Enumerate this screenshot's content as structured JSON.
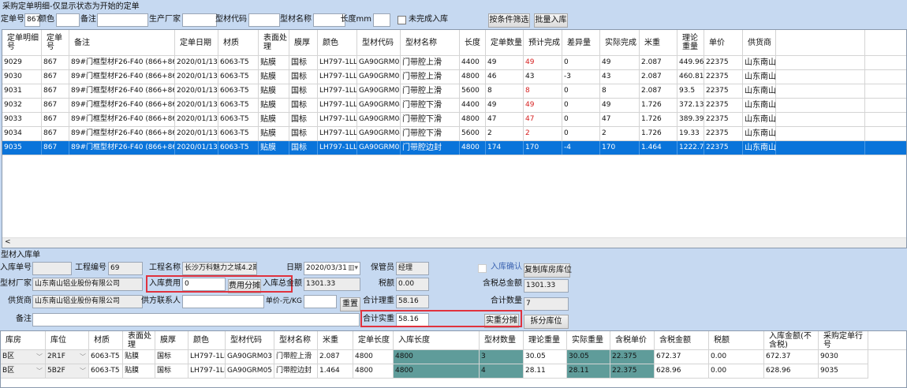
{
  "title": "采购定单明细-仅显示状态为开始的定单",
  "filters": {
    "order_no_label": "定单号",
    "order_no": "867",
    "color_label": "颜色",
    "color": "",
    "remark_label": "备注",
    "remark": "",
    "maker_label": "生产厂家",
    "maker": "",
    "code_label": "型材代码",
    "code": "",
    "name_label": "型材名称",
    "name": "",
    "length_label": "长度mm",
    "length": "",
    "incomplete_label": "未完成入库",
    "filter_btn": "按条件筛选",
    "batch_btn": "批量入库"
  },
  "orders": {
    "headers": [
      "定单明细号",
      "定单号",
      "备注",
      "定单日期",
      "材质",
      "表面处理",
      "膜厚",
      "颜色",
      "型材代码",
      "型材名称",
      "长度",
      "定单数量",
      "预计完成",
      "差异量",
      "实际完成",
      "米重",
      "理论重量",
      "单价",
      "供货商",
      ""
    ],
    "rows": [
      [
        "9029",
        "867",
        "89#门框型材F26-F40 (866+867)",
        "2020/01/13",
        "6063-T5",
        "贴膜",
        "国标",
        "LH797-1LL0",
        "GA90GRM03",
        "门带腔上滑",
        "4400",
        "49",
        "49",
        "0",
        "49",
        "2.087",
        "449.96",
        "22375",
        "山东南山铝业股份有限公司",
        ""
      ],
      [
        "9030",
        "867",
        "89#门框型材F26-F40 (866+867)",
        "2020/01/13",
        "6063-T5",
        "贴膜",
        "国标",
        "LH797-1LL0",
        "GA90GRM03",
        "门带腔上滑",
        "4800",
        "46",
        "43",
        "-3",
        "43",
        "2.087",
        "460.81",
        "22375",
        "山东南山铝业股份有限公司",
        ""
      ],
      [
        "9031",
        "867",
        "89#门框型材F26-F40 (866+867)",
        "2020/01/13",
        "6063-T5",
        "贴膜",
        "国标",
        "LH797-1LL0",
        "GA90GRM03",
        "门带腔上滑",
        "5600",
        "8",
        "8",
        "0",
        "8",
        "2.087",
        "93.5",
        "22375",
        "山东南山铝业股份有限公司",
        ""
      ],
      [
        "9032",
        "867",
        "89#门框型材F26-F40 (866+867)",
        "2020/01/13",
        "6063-T5",
        "贴膜",
        "国标",
        "LH797-1LL0",
        "GA90GRM04",
        "门带腔下滑",
        "4400",
        "49",
        "49",
        "0",
        "49",
        "1.726",
        "372.13",
        "22375",
        "山东南山铝业股份有限公司",
        ""
      ],
      [
        "9033",
        "867",
        "89#门框型材F26-F40 (866+867)",
        "2020/01/13",
        "6063-T5",
        "贴膜",
        "国标",
        "LH797-1LL0",
        "GA90GRM04",
        "门带腔下滑",
        "4800",
        "47",
        "47",
        "0",
        "47",
        "1.726",
        "389.39",
        "22375",
        "山东南山铝业股份有限公司",
        ""
      ],
      [
        "9034",
        "867",
        "89#门框型材F26-F40 (866+867)",
        "2020/01/13",
        "6063-T5",
        "贴膜",
        "国标",
        "LH797-1LL0",
        "GA90GRM04",
        "门带腔下滑",
        "5600",
        "2",
        "2",
        "0",
        "2",
        "1.726",
        "19.33",
        "22375",
        "山东南山铝业股份有限公司",
        ""
      ],
      [
        "9035",
        "867",
        "89#门框型材F26-F40 (866+867)",
        "2020/01/13",
        "6063-T5",
        "贴膜",
        "国标",
        "LH797-1LL0",
        "GA90GRM05",
        "门带腔边封",
        "4800",
        "174",
        "170",
        "-4",
        "170",
        "1.464",
        "1222.73",
        "22375",
        "山东南山铝业股份有限公司",
        ""
      ]
    ],
    "selected_row": 6,
    "red_rows": [
      0,
      2,
      3,
      4,
      5
    ]
  },
  "receipt": {
    "section_title": "型材入库单",
    "receipt_no_label": "入库单号",
    "receipt_no": "",
    "project_no_label": "工程编号",
    "project_no": "69",
    "project_name_label": "工程名称",
    "project_name": "长沙万科魅力之城4.2期",
    "date_label": "日期",
    "date": "2020/03/31",
    "keeper_label": "保管员",
    "keeper": "经理",
    "confirm_label": "入库确认",
    "copy_btn": "复制库房库位",
    "maker_label": "型材厂家",
    "maker": "山东南山铝业股份有限公司",
    "fee_label": "入库费用",
    "fee": "0",
    "fee_btn": "费用分摊",
    "total_label": "入库总金额",
    "total": "1301.33",
    "tax_label": "税额",
    "tax": "0.00",
    "tax_total_label": "含税总金额",
    "tax_total": "1301.33",
    "supplier_label": "供货商",
    "supplier": "山东南山铝业股份有限公司",
    "contact_label": "供方联系人",
    "contact": "",
    "unit_price_label": "单价-元/KG",
    "unit_price": "",
    "reset_btn": "重置",
    "theory_weight_label": "合计理重",
    "theory_weight": "58.16",
    "qty_label": "合计数量",
    "qty": "7",
    "remark_label": "备注",
    "remark": "",
    "actual_weight_label": "合计实重",
    "actual_weight": "58.16",
    "actual_btn": "实重分摊",
    "split_btn": "拆分库位"
  },
  "items": {
    "headers": [
      "库房",
      "库位",
      "材质",
      "表面处理",
      "膜厚",
      "颜色",
      "型材代码",
      "型材名称",
      "米重",
      "定单长度",
      "入库长度",
      "型材数量",
      "理论重量",
      "实际重量",
      "含税单价",
      "含税金额",
      "税额",
      "入库金额(不含税)",
      "采购定单行号"
    ],
    "rows": [
      [
        "B区",
        "2R1F",
        "6063-T5",
        "贴膜",
        "国标",
        "LH797-1LL0",
        "GA90GRM03",
        "门带腔上滑",
        "2.087",
        "4800",
        "4800",
        "3",
        "30.05",
        "30.05",
        "22.375",
        "672.37",
        "0.00",
        "672.37",
        "9030"
      ],
      [
        "B区",
        "5B2F",
        "6063-T5",
        "贴膜",
        "国标",
        "LH797-1LL0",
        "GA90GRM05",
        "门带腔边封",
        "1.464",
        "4800",
        "4800",
        "4",
        "28.11",
        "28.11",
        "22.375",
        "628.96",
        "0.00",
        "628.96",
        "9035"
      ]
    ],
    "editable_cols": [
      10,
      11,
      13,
      14
    ],
    "edit_color": "#5f9c9a"
  },
  "colors": {
    "selection": "#0a74da",
    "highlight_box": "#e0323e",
    "panel": "#c6d9f1"
  }
}
